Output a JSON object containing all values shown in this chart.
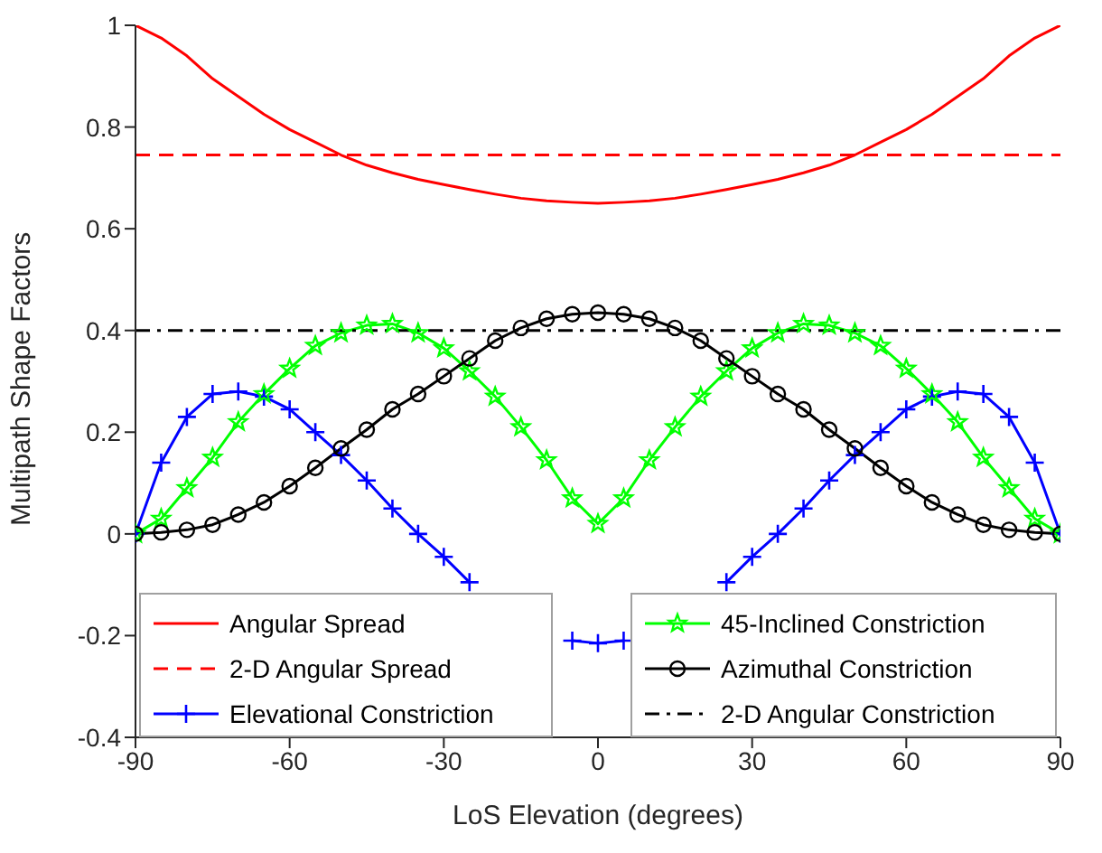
{
  "chart_data": {
    "type": "line",
    "xlabel": "LoS Elevation (degrees)",
    "ylabel": "Multipath Shape Factors",
    "x": [
      -90,
      -85,
      -80,
      -75,
      -70,
      -65,
      -60,
      -55,
      -50,
      -45,
      -40,
      -35,
      -30,
      -25,
      -20,
      -15,
      -10,
      -5,
      0,
      5,
      10,
      15,
      20,
      25,
      30,
      35,
      40,
      45,
      50,
      55,
      60,
      65,
      70,
      75,
      80,
      85,
      90
    ],
    "series": [
      {
        "name": "Angular Spread",
        "color": "#ff0000",
        "marker": "none",
        "line_style": "solid",
        "values": [
          1,
          0.975,
          0.94,
          0.895,
          0.86,
          0.825,
          0.795,
          0.77,
          0.745,
          0.725,
          0.71,
          0.697,
          0.687,
          0.677,
          0.668,
          0.66,
          0.655,
          0.652,
          0.65,
          0.652,
          0.655,
          0.66,
          0.668,
          0.677,
          0.687,
          0.697,
          0.71,
          0.725,
          0.745,
          0.77,
          0.795,
          0.825,
          0.86,
          0.895,
          0.94,
          0.975,
          1
        ]
      },
      {
        "name": "2-D Angular Spread",
        "color": "#ff0000",
        "marker": "none",
        "line_style": "dashed",
        "values": [
          0.745,
          0.745,
          0.745,
          0.745,
          0.745,
          0.745,
          0.745,
          0.745,
          0.745,
          0.745,
          0.745,
          0.745,
          0.745,
          0.745,
          0.745,
          0.745,
          0.745,
          0.745,
          0.745,
          0.745,
          0.745,
          0.745,
          0.745,
          0.745,
          0.745,
          0.745,
          0.745,
          0.745,
          0.745,
          0.745,
          0.745,
          0.745,
          0.745,
          0.745,
          0.745,
          0.745,
          0.745
        ]
      },
      {
        "name": "Elevational Constriction",
        "color": "#0000ff",
        "marker": "cross",
        "line_style": "solid",
        "values": [
          0,
          0.14,
          0.23,
          0.275,
          0.28,
          0.27,
          0.245,
          0.2,
          0.155,
          0.105,
          0.05,
          0,
          -0.045,
          -0.095,
          null,
          null,
          null,
          -0.21,
          -0.215,
          -0.21,
          null,
          null,
          null,
          -0.095,
          -0.045,
          0,
          0.05,
          0.105,
          0.155,
          0.2,
          0.245,
          0.27,
          0.28,
          0.275,
          0.23,
          0.14,
          0
        ]
      },
      {
        "name": "45-Inclined Constriction",
        "color": "#00ff00",
        "marker": "star",
        "line_style": "solid",
        "values": [
          0,
          0.03,
          0.09,
          0.15,
          0.22,
          0.275,
          0.325,
          0.37,
          0.395,
          0.41,
          0.413,
          0.395,
          0.365,
          0.32,
          0.27,
          0.21,
          0.145,
          0.07,
          0.02,
          0.07,
          0.145,
          0.21,
          0.27,
          0.32,
          0.365,
          0.395,
          0.413,
          0.41,
          0.395,
          0.37,
          0.325,
          0.275,
          0.22,
          0.15,
          0.09,
          0.03,
          0
        ]
      },
      {
        "name": "Azimuthal Constriction",
        "color": "#000000",
        "marker": "circle",
        "line_style": "solid",
        "values": [
          0,
          0.003,
          0.008,
          0.018,
          0.038,
          0.062,
          0.094,
          0.13,
          0.168,
          0.205,
          0.245,
          0.275,
          0.31,
          0.345,
          0.38,
          0.405,
          0.423,
          0.432,
          0.435,
          0.432,
          0.423,
          0.405,
          0.38,
          0.345,
          0.31,
          0.275,
          0.245,
          0.205,
          0.168,
          0.13,
          0.094,
          0.062,
          0.038,
          0.018,
          0.008,
          0.003,
          0
        ]
      },
      {
        "name": "2-D Angular Constriction",
        "color": "#000000",
        "marker": "none",
        "line_style": "dashdot",
        "values": [
          0.4,
          0.4,
          0.4,
          0.4,
          0.4,
          0.4,
          0.4,
          0.4,
          0.4,
          0.4,
          0.4,
          0.4,
          0.4,
          0.4,
          0.4,
          0.4,
          0.4,
          0.4,
          0.4,
          0.4,
          0.4,
          0.4,
          0.4,
          0.4,
          0.4,
          0.4,
          0.4,
          0.4,
          0.4,
          0.4,
          0.4,
          0.4,
          0.4,
          0.4,
          0.4,
          0.4,
          0.4
        ]
      }
    ],
    "xlim": [
      -90,
      90
    ],
    "xticks": [
      -90,
      -60,
      -30,
      0,
      30,
      60,
      90
    ],
    "ylim": [
      -0.4,
      1
    ],
    "yticks": [
      -0.4,
      -0.2,
      0,
      0.2,
      0.4,
      0.6,
      0.8,
      1
    ],
    "grid": false,
    "legend": "bottom"
  }
}
